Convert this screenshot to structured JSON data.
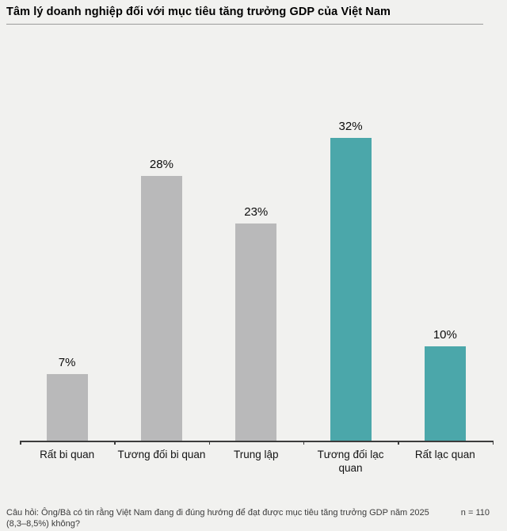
{
  "header": {
    "title": "Tâm lý doanh nghiệp đối với mục tiêu tăng trưởng GDP của Việt Nam"
  },
  "chart_data": {
    "type": "bar",
    "title": "Tâm lý doanh nghiệp đối với mục tiêu tăng trưởng GDP của Việt Nam",
    "categories": [
      "Rất bi quan",
      "Tương đối bi quan",
      "Trung lập",
      "Tương đối lạc quan",
      "Rất lạc quan"
    ],
    "category_label_lines": [
      [
        "Rất bi quan"
      ],
      [
        "Tương đối bi quan"
      ],
      [
        "Trung lập"
      ],
      [
        "Tương đối lạc",
        "quan"
      ],
      [
        "Rất lạc quan"
      ]
    ],
    "values": [
      7,
      28,
      23,
      32,
      10
    ],
    "value_labels": [
      "7%",
      "28%",
      "23%",
      "32%",
      "10%"
    ],
    "unit": "%",
    "bar_colors": [
      "#b9b9ba",
      "#b9b9ba",
      "#b9b9ba",
      "#4ba7aa",
      "#4ba7aa"
    ],
    "colors": {
      "neutral_gray": "#b9b9ba",
      "accent_teal": "#4ba7aa",
      "background": "#f1f1ef",
      "axis": "#3c3c3c"
    },
    "xlabel": "",
    "ylabel": "",
    "ylim": [
      0,
      35
    ],
    "grid": false,
    "legend": false
  },
  "footer": {
    "question_lines": [
      "Câu hỏi: Ông/Bà có tin rằng Việt Nam đang đi đúng hướng để đạt được mục tiêu tăng trưởng GDP năm 2025",
      "(8,3–8,5%) không?"
    ],
    "n_label": "n = 110"
  }
}
